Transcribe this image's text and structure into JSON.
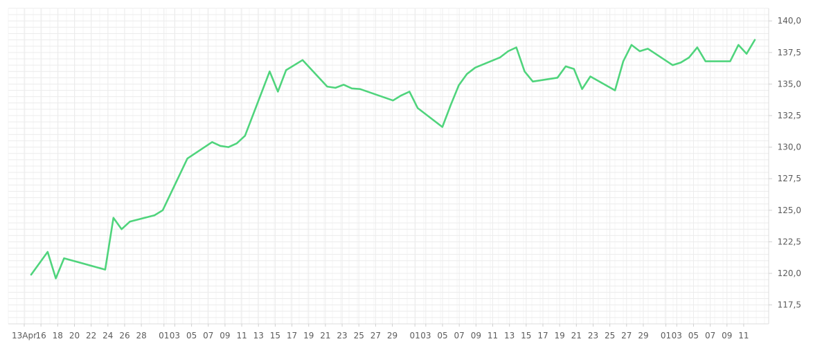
{
  "chart_data": {
    "type": "line",
    "title": "",
    "xlabel": "",
    "ylabel": "",
    "grid": true,
    "legend": "none",
    "x_dates": [
      "2000-04-13",
      "2000-04-15",
      "2000-04-16",
      "2000-04-17",
      "2000-04-22",
      "2000-04-23",
      "2000-04-24",
      "2000-04-25",
      "2000-04-28",
      "2000-04-29",
      "2000-05-02",
      "2000-05-05",
      "2000-05-06",
      "2000-05-07",
      "2000-05-08",
      "2000-05-09",
      "2000-05-12",
      "2000-05-13",
      "2000-05-14",
      "2000-05-16",
      "2000-05-19",
      "2000-05-20",
      "2000-05-21",
      "2000-05-22",
      "2000-05-23",
      "2000-05-27",
      "2000-05-28",
      "2000-05-29",
      "2000-05-30",
      "2000-06-02",
      "2000-06-03",
      "2000-06-04",
      "2000-06-05",
      "2000-06-06",
      "2000-06-09",
      "2000-06-10",
      "2000-06-11",
      "2000-06-12",
      "2000-06-13",
      "2000-06-16",
      "2000-06-17",
      "2000-06-18",
      "2000-06-19",
      "2000-06-20",
      "2000-06-23",
      "2000-06-24",
      "2000-06-25",
      "2000-06-26",
      "2000-06-27",
      "2000-06-30",
      "2000-07-01",
      "2000-07-02",
      "2000-07-03",
      "2000-07-04",
      "2000-07-07",
      "2000-07-08",
      "2000-07-09",
      "2000-07-10"
    ],
    "series": [
      {
        "color": "#4fd47c",
        "values": [
          119.9,
          121.7,
          119.6,
          121.2,
          120.3,
          124.4,
          123.5,
          124.1,
          124.6,
          125.0,
          129.1,
          130.4,
          130.1,
          130.0,
          130.3,
          130.9,
          136.0,
          134.4,
          136.1,
          136.9,
          134.8,
          134.7,
          134.95,
          134.65,
          134.6,
          133.7,
          134.1,
          134.4,
          133.1,
          131.6,
          133.3,
          134.9,
          135.8,
          136.3,
          137.1,
          137.6,
          137.9,
          136.0,
          135.2,
          135.5,
          136.4,
          136.2,
          134.6,
          135.6,
          134.5,
          136.8,
          138.1,
          137.6,
          137.8,
          136.5,
          136.7,
          137.1,
          137.9,
          136.8,
          136.8,
          138.1,
          137.4,
          138.5
        ]
      }
    ],
    "ylim": [
      116.0,
      141.0
    ],
    "y_ticks": [
      117.5,
      120.0,
      122.5,
      125.0,
      127.5,
      130.0,
      132.5,
      135.0,
      137.5,
      140.0
    ],
    "y_tick_labels": [
      "117,5",
      "120,0",
      "122,5",
      "125,0",
      "127,5",
      "130,0",
      "132,5",
      "135,0",
      "137,5",
      "140,0"
    ],
    "x_tick_labels": [
      "13Apr",
      "16",
      "18",
      "20",
      "22",
      "24",
      "26",
      "28",
      "01",
      "03",
      "05",
      "07",
      "09",
      "11",
      "13",
      "15",
      "17",
      "19",
      "21",
      "23",
      "25",
      "27",
      "29",
      "01",
      "03",
      "05",
      "07",
      "09",
      "11",
      "13",
      "15",
      "17",
      "19",
      "21",
      "23",
      "25",
      "27",
      "29",
      "01",
      "03",
      "05",
      "07",
      "09",
      "11"
    ]
  }
}
